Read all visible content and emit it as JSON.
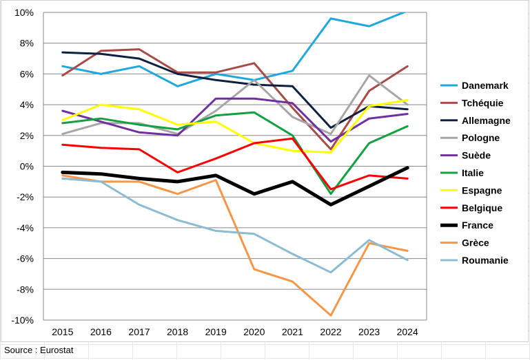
{
  "source": "Source : Eurostat",
  "chart_data": {
    "type": "line",
    "x": [
      "2015",
      "2016",
      "2017",
      "2018",
      "2019",
      "2020",
      "2021",
      "2022",
      "2023",
      "2024"
    ],
    "ylim": [
      -10,
      10
    ],
    "ytick_step": 2,
    "ytick_labels": [
      "-10%",
      "-8%",
      "-6%",
      "-4%",
      "-2%",
      "0%",
      "2%",
      "4%",
      "6%",
      "8%",
      "10%"
    ],
    "grid": true,
    "legend_position": "right",
    "series": [
      {
        "name": "Danemark",
        "color": "#1fa7e0",
        "values": [
          6.5,
          6.0,
          6.5,
          5.2,
          6.0,
          5.6,
          6.2,
          9.6,
          9.1,
          10.1
        ]
      },
      {
        "name": "Tchéquie",
        "color": "#a94a47",
        "values": [
          5.9,
          7.5,
          7.6,
          6.1,
          6.1,
          6.7,
          3.8,
          1.1,
          4.9,
          6.5
        ]
      },
      {
        "name": "Allemagne",
        "color": "#0d2040",
        "values": [
          7.4,
          7.3,
          7.0,
          6.0,
          5.6,
          5.3,
          5.2,
          2.5,
          3.9,
          3.7
        ]
      },
      {
        "name": "Pologne",
        "color": "#a6a6a6",
        "values": [
          2.1,
          2.8,
          2.8,
          2.1,
          3.6,
          5.6,
          3.2,
          2.1,
          5.9,
          4.0
        ]
      },
      {
        "name": "Suède",
        "color": "#7030a0",
        "values": [
          3.6,
          2.9,
          2.2,
          2.0,
          4.4,
          4.4,
          4.1,
          1.6,
          3.1,
          3.4
        ]
      },
      {
        "name": "Italie",
        "color": "#12a040",
        "values": [
          2.8,
          3.1,
          2.7,
          2.4,
          3.3,
          3.5,
          2.0,
          -1.8,
          1.5,
          2.6
        ]
      },
      {
        "name": "Espagne",
        "color": "#ffff00",
        "values": [
          3.0,
          4.0,
          3.7,
          2.7,
          2.9,
          1.5,
          1.0,
          0.9,
          3.9,
          4.3
        ]
      },
      {
        "name": "Belgique",
        "color": "#ff0000",
        "values": [
          1.4,
          1.2,
          1.1,
          -0.4,
          0.5,
          1.5,
          1.8,
          -1.5,
          -0.6,
          -0.8
        ]
      },
      {
        "name": "France",
        "color": "#000000",
        "values": [
          -0.4,
          -0.5,
          -0.8,
          -1.0,
          -0.6,
          -1.8,
          -1.0,
          -2.5,
          -1.3,
          -0.1
        ]
      },
      {
        "name": "Grèce",
        "color": "#f79646",
        "values": [
          -0.6,
          -1.0,
          -1.0,
          -1.8,
          -0.9,
          -6.7,
          -7.5,
          -9.7,
          -5.0,
          -5.5
        ]
      },
      {
        "name": "Roumanie",
        "color": "#8bbcd1",
        "values": [
          -0.8,
          -1.0,
          -2.5,
          -3.5,
          -4.2,
          -4.4,
          -5.7,
          -6.9,
          -4.8,
          -6.1
        ]
      }
    ]
  }
}
